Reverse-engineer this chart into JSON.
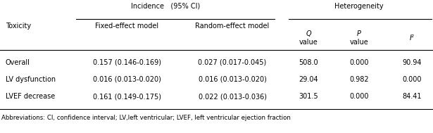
{
  "title_incidence": "Incidence",
  "title_incidence2": "(95% CI)",
  "title_heterogeneity": "Heterogeneity",
  "col_toxicity": "Toxicity",
  "col_fixed": "Fixed-effect model",
  "col_random": "Random-effect model",
  "col_Q1": "Q",
  "col_Q2": "value",
  "col_P1": "P",
  "col_P2": "value",
  "col_I2_top": "I",
  "rows": [
    [
      "Overall",
      "0.157 (0.146-0.169)",
      "0.027 (0.017-0.045)",
      "508.0",
      "0.000",
      "90.94"
    ],
    [
      "LV dysfunction",
      "0.016 (0.013-0.020)",
      "0.016 (0.013-0.020)",
      "29.04",
      "0.982",
      "0.000"
    ],
    [
      "LVEF decrease",
      "0.161 (0.149-0.175)",
      "0.022 (0.013-0.036)",
      "301.5",
      "0.000",
      "84.41"
    ]
  ],
  "footnote": "Abbreviations: CI, confidence interval; LV,left ventricular; LVEF, left ventricular ejection fraction",
  "bg_color": "#ffffff",
  "text_color": "#000000",
  "line_color": "#000000",
  "font_size": 7.0,
  "footnote_font_size": 6.2
}
